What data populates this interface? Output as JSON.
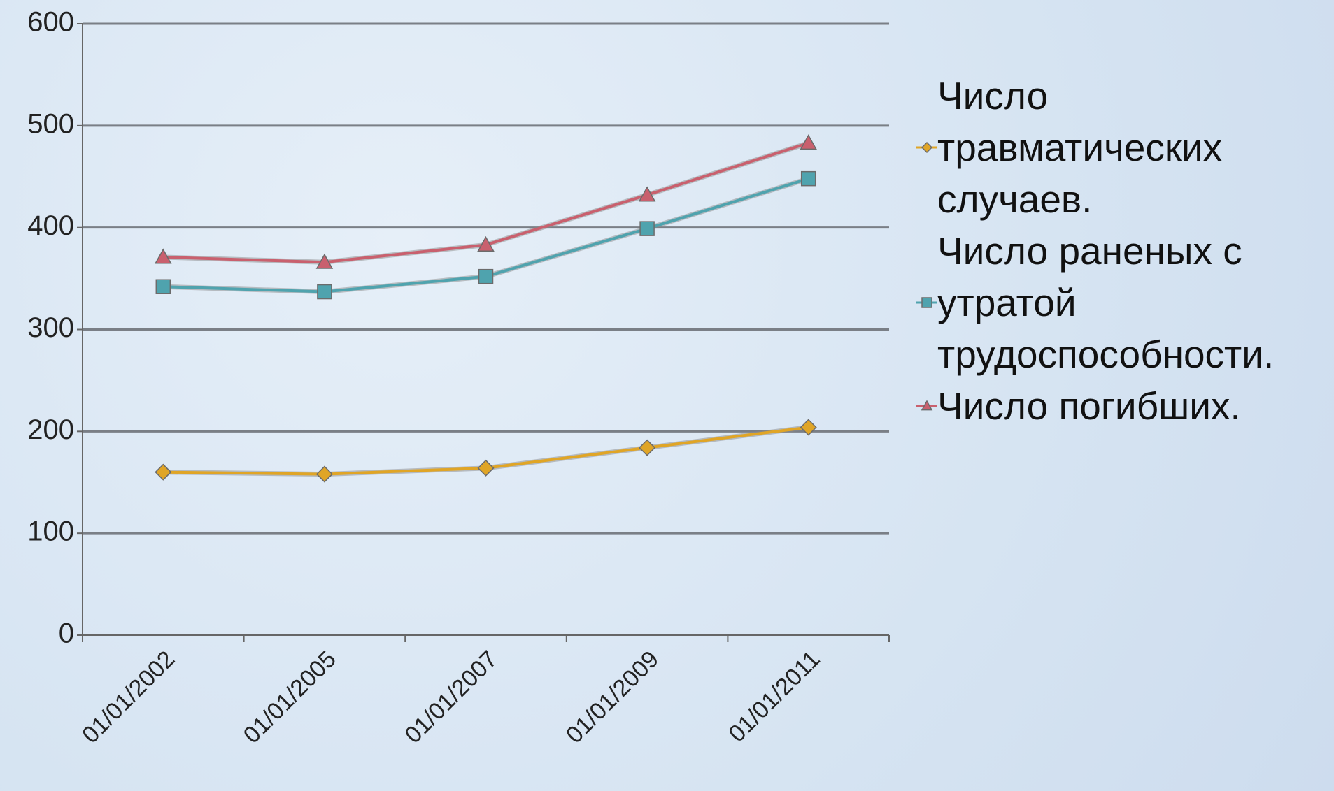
{
  "chart_data": {
    "type": "line",
    "categories": [
      "01/01/2002",
      "01/01/2005",
      "01/01/2007",
      "01/01/2009",
      "01/01/2011"
    ],
    "series": [
      {
        "name": "Число травматических случаев.",
        "color": "#e0a526",
        "marker": "diamond",
        "values": [
          160,
          158,
          164,
          184,
          204
        ]
      },
      {
        "name": "Число раненых с утратой трудоспособности.",
        "color": "#4fa3ae",
        "marker": "square",
        "values": [
          342,
          337,
          352,
          399,
          448
        ]
      },
      {
        "name": "Число погибших.",
        "color": "#c9606e",
        "marker": "triangle",
        "values": [
          371,
          366,
          383,
          432,
          483
        ]
      }
    ],
    "ylim": [
      0,
      600
    ],
    "yticks": [
      0,
      100,
      200,
      300,
      400,
      500,
      600
    ],
    "grid": true,
    "legend": "right"
  }
}
